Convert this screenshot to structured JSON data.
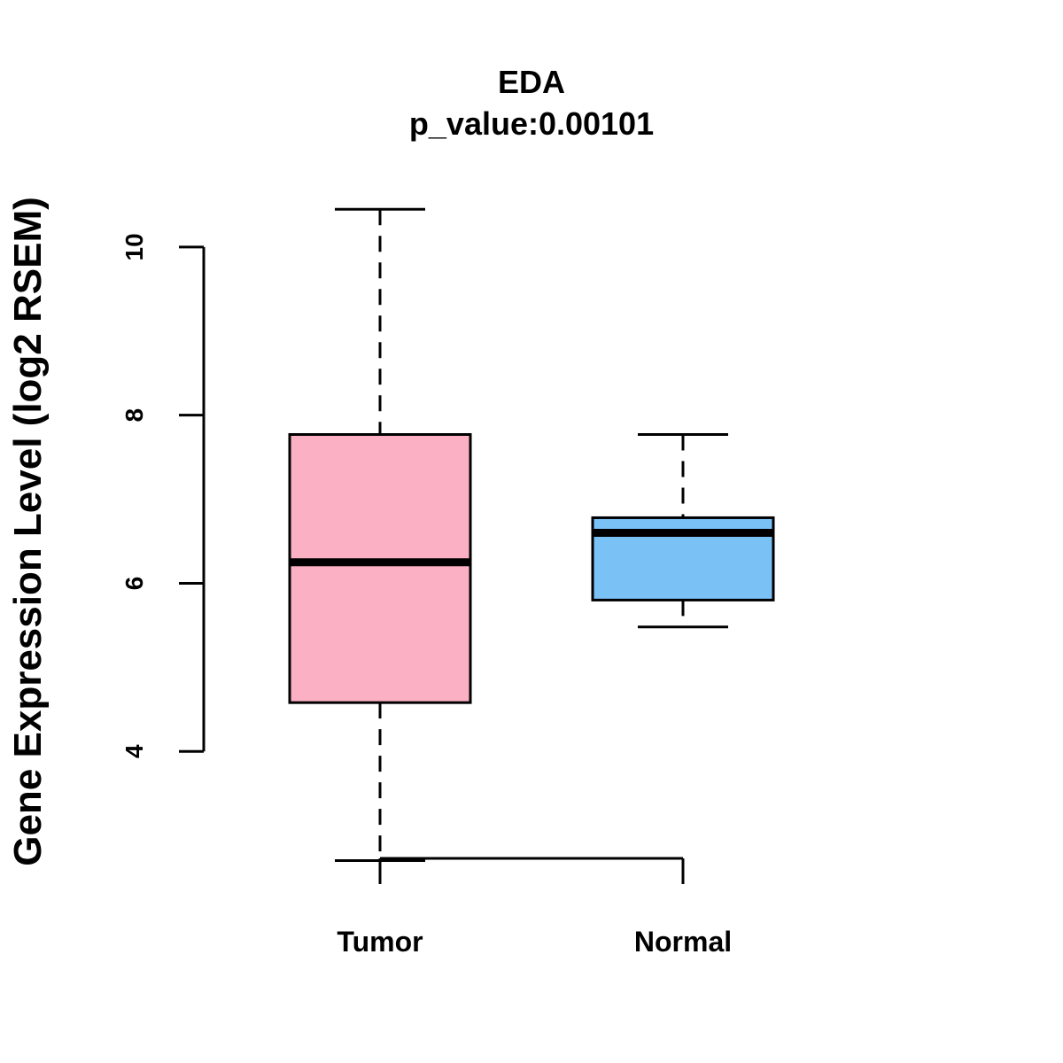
{
  "chart_data": {
    "type": "boxplot",
    "title": "EDA",
    "subtitle": "p_value:0.00101",
    "ylabel": "Gene Expression Level (log2 RSEM)",
    "xlabel": "",
    "ylim": [
      2.4,
      10.6
    ],
    "yticks": [
      4,
      6,
      8,
      10
    ],
    "ytick_labels": [
      "4",
      "6",
      "8",
      "10"
    ],
    "categories": [
      "Tumor",
      "Normal"
    ],
    "series": [
      {
        "name": "Tumor",
        "whisker_low": 2.7,
        "q1": 4.58,
        "median": 6.25,
        "q3": 7.77,
        "whisker_high": 10.45,
        "color": "#FBB1C3"
      },
      {
        "name": "Normal",
        "whisker_low": 5.48,
        "q1": 5.8,
        "median": 6.6,
        "q3": 6.78,
        "whisker_high": 7.77,
        "color": "#7AC1F6"
      }
    ]
  }
}
